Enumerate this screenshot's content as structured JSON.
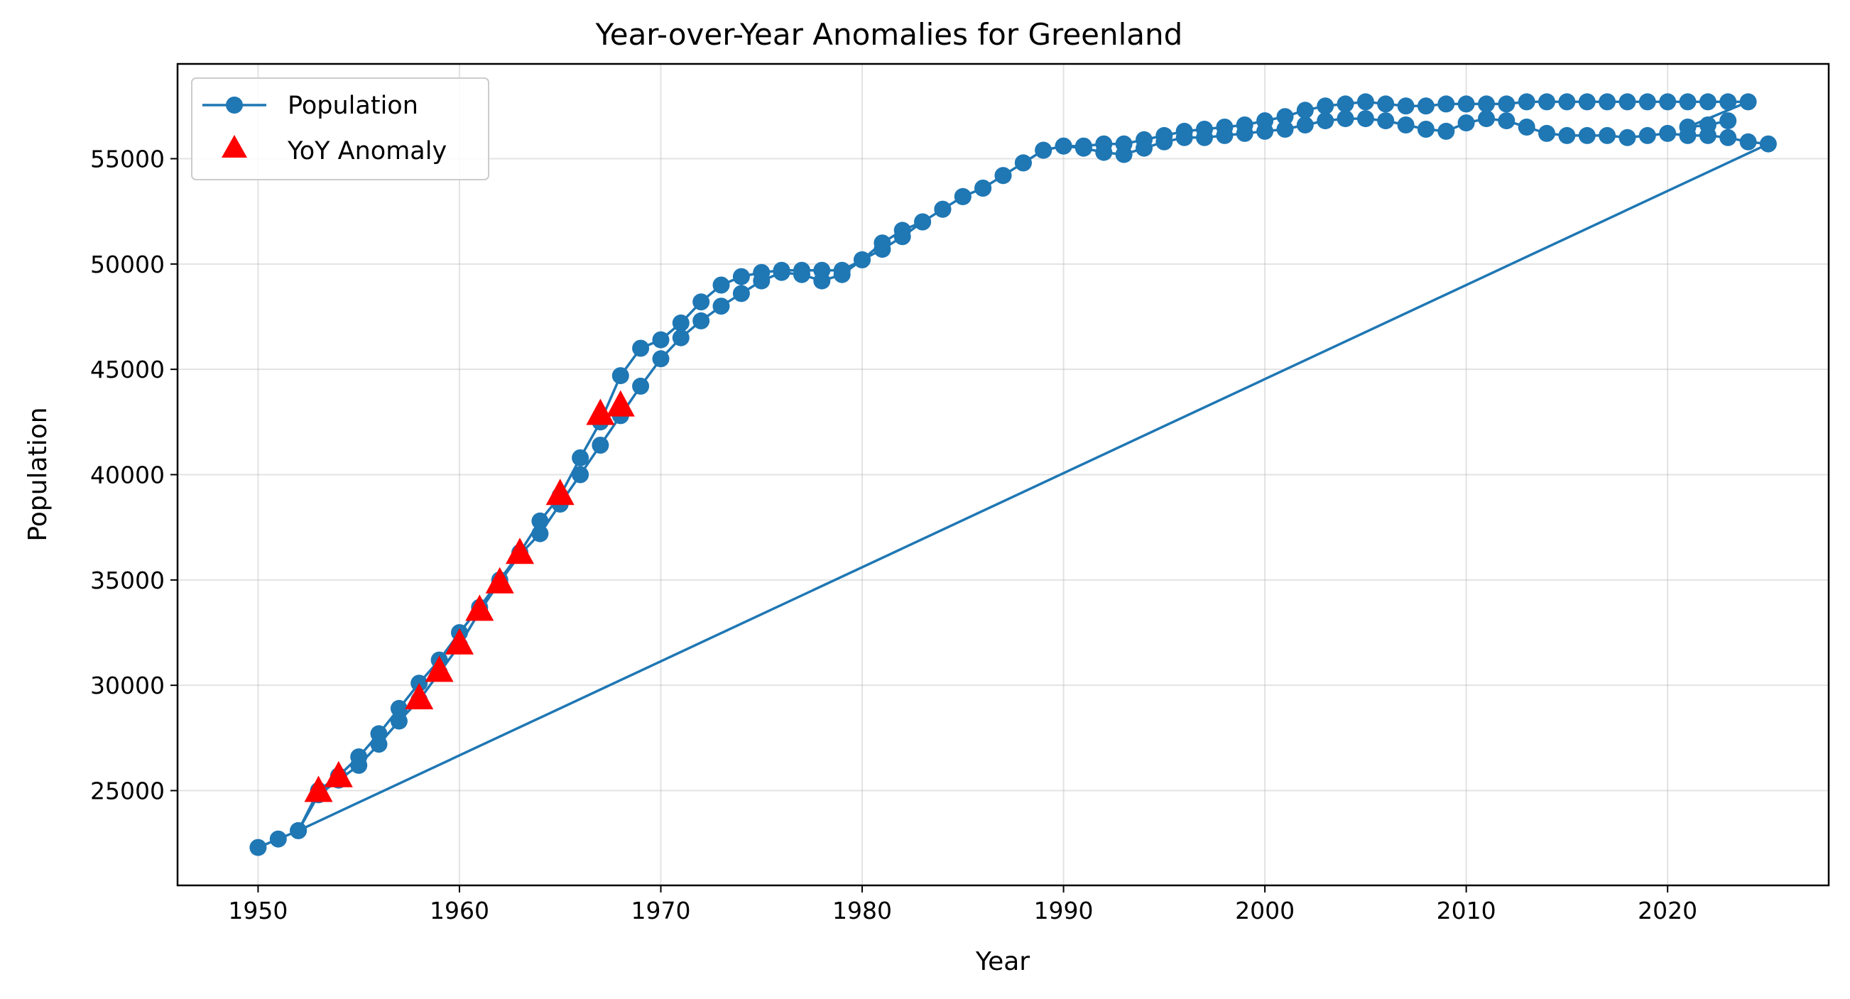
{
  "chart_data": {
    "type": "line",
    "title": "Year-over-Year Anomalies for Greenland",
    "xlabel": "Year",
    "ylabel": "Population",
    "xlim": [
      1946,
      2028
    ],
    "ylim": [
      20500,
      59500
    ],
    "xticks": [
      1950,
      1960,
      1970,
      1980,
      1990,
      2000,
      2010,
      2020
    ],
    "yticks": [
      25000,
      30000,
      35000,
      40000,
      45000,
      50000,
      55000
    ],
    "grid": true,
    "legend_position": "upper-left",
    "colors": {
      "line": "#1f77b4",
      "anomaly": "#ff0000"
    },
    "series": [
      {
        "name": "Population",
        "marker": "circle",
        "x": [
          1950,
          1951,
          1952,
          1953,
          1954,
          1955,
          1956,
          1957,
          1958,
          1959,
          1960,
          1961,
          1962,
          1963,
          1964,
          1965,
          1966,
          1967,
          1968,
          1969,
          1970,
          1971,
          1972,
          1973,
          1974,
          1975,
          1976,
          1977,
          1978,
          1979,
          1980,
          1981,
          1982,
          1983,
          1984,
          1985,
          1986,
          1987,
          1988,
          1989,
          1990,
          1991,
          1992,
          1993,
          1994,
          1995,
          1996,
          1997,
          1998,
          1999,
          2000,
          2001,
          2002,
          2003,
          2004,
          2005,
          2006,
          2007,
          2008,
          2009,
          2010,
          2011,
          2012,
          2013,
          2014,
          2015,
          2016,
          2017,
          2018,
          2019,
          2020,
          2021,
          2022,
          2023,
          2024,
          2025,
          1952,
          1953,
          1954,
          1955,
          1956,
          1957,
          1958,
          1959,
          1960,
          1961,
          1962,
          1963,
          1964,
          1965,
          1966,
          1967,
          1968,
          1969,
          1970,
          1971,
          1972,
          1973,
          1974,
          1975,
          1976,
          1977,
          1978,
          1979,
          1980,
          1981,
          1982,
          1983,
          1984,
          1985,
          1986,
          1987,
          1988,
          1989,
          1990,
          1991,
          1992,
          1993,
          1994,
          1995,
          1996,
          1997,
          1998,
          1999,
          2000,
          2001,
          2002,
          2003,
          2004,
          2005,
          2006,
          2007,
          2008,
          2009,
          2010,
          2011,
          2012,
          2013,
          2014,
          2015,
          2016,
          2017,
          2018,
          2019,
          2020,
          2021,
          2022,
          2023,
          2024,
          2021,
          2022,
          2023
        ],
        "y": [
          22300,
          22700,
          23100,
          24800,
          25500,
          26200,
          27200,
          28300,
          29300,
          30600,
          31900,
          33500,
          34900,
          36200,
          37200,
          38600,
          40000,
          41400,
          42800,
          44200,
          45500,
          46500,
          47300,
          48000,
          48600,
          49200,
          49600,
          49500,
          49200,
          49500,
          50200,
          50700,
          51300,
          52000,
          52600,
          53200,
          53600,
          54200,
          54800,
          55400,
          55600,
          55500,
          55300,
          55200,
          55500,
          55800,
          56000,
          56000,
          56100,
          56200,
          56300,
          56400,
          56600,
          56800,
          56900,
          56900,
          56800,
          56600,
          56400,
          56300,
          56700,
          56900,
          56800,
          56500,
          56200,
          56100,
          56100,
          56100,
          56000,
          56100,
          56200,
          56100,
          56100,
          56000,
          55800,
          55700,
          23100,
          25000,
          25700,
          26600,
          27700,
          28900,
          30100,
          31200,
          32500,
          33700,
          35000,
          36300,
          37800,
          39000,
          40800,
          42500,
          44700,
          46000,
          46400,
          47200,
          48200,
          49000,
          49400,
          49600,
          49700,
          49700,
          49700,
          49700,
          50200,
          51000,
          51600,
          52000,
          52600,
          53200,
          53600,
          54200,
          54800,
          55400,
          55600,
          55600,
          55700,
          55700,
          55900,
          56100,
          56300,
          56400,
          56500,
          56600,
          56800,
          57000,
          57300,
          57500,
          57600,
          57700,
          57600,
          57500,
          57500,
          57600,
          57600,
          57600,
          57600,
          57700,
          57700,
          57700,
          57700,
          57700,
          57700,
          57700,
          57700,
          57700,
          57700,
          57700,
          57700,
          56500,
          56600,
          56800
        ]
      },
      {
        "name": "YoY Anomaly",
        "marker": "triangle",
        "x": [
          1953,
          1954,
          1958,
          1959,
          1960,
          1961,
          1962,
          1963,
          1965,
          1967,
          1968
        ],
        "y": [
          25000,
          25700,
          29400,
          30700,
          32000,
          33600,
          34900,
          36300,
          39100,
          42900,
          43300
        ]
      }
    ]
  }
}
